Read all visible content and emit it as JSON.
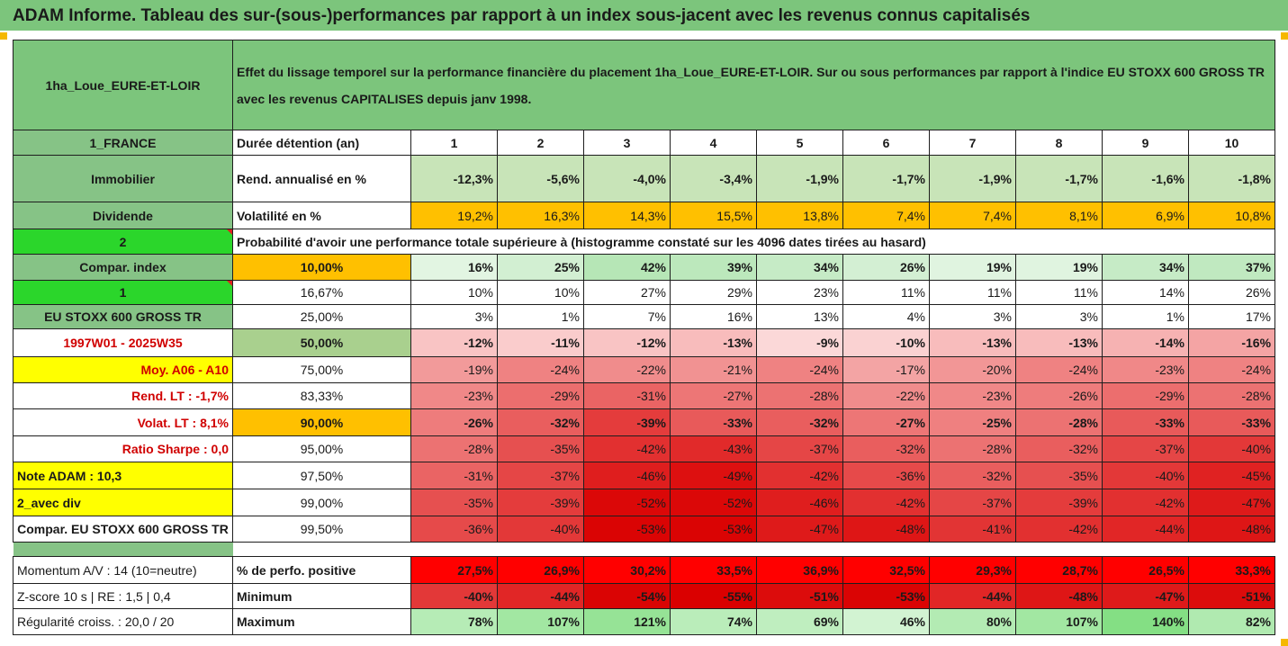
{
  "banner": "ADAM Informe. Tableau des sur-(sous-)performances par rapport à un index sous-jacent avec les revenus connus capitalisés",
  "header": {
    "asset_name": "1ha_Loue_EURE-ET-LOIR",
    "title": "Effet du lissage temporel sur la performance financière du placement 1ha_Loue_EURE-ET-LOIR. Sur ou sous performances par rapport à l'indice EU STOXX 600 GROSS TR avec les revenus CAPITALISES depuis janv 1998."
  },
  "left_labels": {
    "country": "1_FRANCE",
    "category": "Immobilier",
    "income": "Dividende",
    "two": "2",
    "compar_index": "Compar. index",
    "one": "1",
    "index_name": "EU STOXX 600 GROSS TR",
    "period": "1997W01 - 2025W35",
    "moy": "Moy. A06 - A10",
    "rend_lt": "Rend. LT :   -1,7%",
    "volat_lt": "Volat. LT :   8,1%",
    "sharpe": "Ratio Sharpe :   0,0",
    "note": "Note ADAM : 10,3",
    "div": "2_avec div",
    "compar_full": "Compar. EU STOXX 600 GROSS TR",
    "momentum": "Momentum A/V : 14 (10=neutre)",
    "zscore": "Z-score 10 s  |  RE : 1,5  |  0,4",
    "regularite": "Régularité croiss. : 20,0 / 20"
  },
  "headings": {
    "duree": "Durée détention (an)",
    "rend": "Rend. annualisé en %",
    "vol": "Volatilité en %",
    "proba": "Probabilité d'avoir une performance totale supérieure à (histogramme constaté sur les 4096 dates tirées au hasard)",
    "pos": "% de perfo. positive",
    "min": "Minimum",
    "max": "Maximum"
  },
  "years": [
    "1",
    "2",
    "3",
    "4",
    "5",
    "6",
    "7",
    "8",
    "9",
    "10"
  ],
  "rend": [
    "-12,3%",
    "-5,6%",
    "-4,0%",
    "-3,4%",
    "-1,9%",
    "-1,7%",
    "-1,9%",
    "-1,7%",
    "-1,6%",
    "-1,8%"
  ],
  "vol": [
    "19,2%",
    "16,3%",
    "14,3%",
    "15,5%",
    "13,8%",
    "7,4%",
    "7,4%",
    "8,1%",
    "6,9%",
    "10,8%"
  ],
  "vol_colors": [
    "#ffc000",
    "#ffc000",
    "#ffc000",
    "#ffc000",
    "#ffc000",
    "#ffc000",
    "#ffc000",
    "#ffc000",
    "#ffc000",
    "#ffc000"
  ],
  "quantile_rows": [
    {
      "p": "10,00%",
      "bold": true,
      "pcolor": "#ffc000",
      "vals": [
        "16%",
        "25%",
        "42%",
        "39%",
        "34%",
        "26%",
        "19%",
        "19%",
        "34%",
        "37%"
      ],
      "colors": [
        "#e2f5e2",
        "#d2efd2",
        "#b6e6b6",
        "#bce8bc",
        "#c6ebc6",
        "#d3efd3",
        "#e0f4e0",
        "#e0f4e0",
        "#c6ebc6",
        "#c0e9c0"
      ]
    },
    {
      "p": "16,67%",
      "bold": false,
      "pcolor": "#ffffff",
      "vals": [
        "10%",
        "10%",
        "27%",
        "29%",
        "23%",
        "11%",
        "11%",
        "11%",
        "14%",
        "26%"
      ],
      "colors": [
        "#ffffff",
        "#ffffff",
        "#ffffff",
        "#ffffff",
        "#ffffff",
        "#ffffff",
        "#ffffff",
        "#ffffff",
        "#ffffff",
        "#ffffff"
      ]
    },
    {
      "p": "25,00%",
      "bold": false,
      "pcolor": "#ffffff",
      "vals": [
        "3%",
        "1%",
        "7%",
        "16%",
        "13%",
        "4%",
        "3%",
        "3%",
        "1%",
        "17%"
      ],
      "colors": [
        "#ffffff",
        "#ffffff",
        "#ffffff",
        "#ffffff",
        "#ffffff",
        "#ffffff",
        "#ffffff",
        "#ffffff",
        "#ffffff",
        "#ffffff"
      ]
    },
    {
      "p": "50,00%",
      "bold": true,
      "big": true,
      "pcolor": "#a9d08e",
      "vals": [
        "-12%",
        "-11%",
        "-12%",
        "-13%",
        "-9%",
        "-10%",
        "-13%",
        "-13%",
        "-14%",
        "-16%"
      ],
      "colors": [
        "#f9c4c4",
        "#facccc",
        "#f9c4c4",
        "#f8bcbc",
        "#fbd8d8",
        "#fad2d2",
        "#f8bcbc",
        "#f8bcbc",
        "#f6b2b2",
        "#f4a4a4"
      ]
    },
    {
      "p": "75,00%",
      "bold": false,
      "pcolor": "#ffffff",
      "vals": [
        "-19%",
        "-24%",
        "-22%",
        "-21%",
        "-24%",
        "-17%",
        "-20%",
        "-24%",
        "-23%",
        "-24%"
      ],
      "colors": [
        "#f29a9a",
        "#ef8282",
        "#f08c8c",
        "#f19292",
        "#ef8282",
        "#f3a4a4",
        "#f29696",
        "#ef8282",
        "#f08888",
        "#ef8282"
      ]
    },
    {
      "p": "83,33%",
      "bold": false,
      "pcolor": "#ffffff",
      "vals": [
        "-23%",
        "-29%",
        "-31%",
        "-27%",
        "-28%",
        "-22%",
        "-23%",
        "-26%",
        "-29%",
        "-28%"
      ],
      "colors": [
        "#f08888",
        "#ec6e6e",
        "#ea6464",
        "#ed7676",
        "#ec7272",
        "#f08c8c",
        "#f08888",
        "#ee7c7c",
        "#ec6e6e",
        "#ec7272"
      ]
    },
    {
      "p": "90,00%",
      "bold": true,
      "pcolor": "#ffc000",
      "vals": [
        "-26%",
        "-32%",
        "-39%",
        "-33%",
        "-32%",
        "-27%",
        "-25%",
        "-28%",
        "-33%",
        "-33%"
      ],
      "colors": [
        "#ee7c7c",
        "#e95e5e",
        "#e43c3c",
        "#e85a5a",
        "#e95e5e",
        "#ed7676",
        "#ef8080",
        "#ec7272",
        "#e85a5a",
        "#e85a5a"
      ]
    },
    {
      "p": "95,00%",
      "bold": false,
      "pcolor": "#ffffff",
      "vals": [
        "-28%",
        "-35%",
        "-42%",
        "-43%",
        "-37%",
        "-32%",
        "-28%",
        "-32%",
        "-37%",
        "-40%"
      ],
      "colors": [
        "#ec7272",
        "#e65050",
        "#e23030",
        "#e12a2a",
        "#e54646",
        "#e95e5e",
        "#ec7272",
        "#e95e5e",
        "#e54646",
        "#e33838"
      ]
    },
    {
      "p": "97,50%",
      "bold": false,
      "pcolor": "#ffffff",
      "vals": [
        "-31%",
        "-37%",
        "-46%",
        "-49%",
        "-42%",
        "-36%",
        "-32%",
        "-35%",
        "-40%",
        "-45%"
      ],
      "colors": [
        "#ea6464",
        "#e54646",
        "#df1e1e",
        "#dd1010",
        "#e23030",
        "#e64a4a",
        "#e95e5e",
        "#e65050",
        "#e33838",
        "#e02222"
      ]
    },
    {
      "p": "99,00%",
      "bold": false,
      "pcolor": "#ffffff",
      "vals": [
        "-35%",
        "-39%",
        "-52%",
        "-52%",
        "-46%",
        "-42%",
        "-37%",
        "-39%",
        "-42%",
        "-47%"
      ],
      "colors": [
        "#e65050",
        "#e43c3c",
        "#db0808",
        "#db0808",
        "#df1e1e",
        "#e23030",
        "#e54646",
        "#e43c3c",
        "#e23030",
        "#de1a1a"
      ]
    },
    {
      "p": "99,50%",
      "bold": false,
      "pcolor": "#ffffff",
      "vals": [
        "-36%",
        "-40%",
        "-53%",
        "-53%",
        "-47%",
        "-48%",
        "-41%",
        "-42%",
        "-44%",
        "-48%"
      ],
      "colors": [
        "#e64a4a",
        "#e33838",
        "#da0404",
        "#da0404",
        "#de1a1a",
        "#de1616",
        "#e23434",
        "#e23030",
        "#e12626",
        "#de1616"
      ]
    }
  ],
  "pos": [
    "27,5%",
    "26,9%",
    "30,2%",
    "33,5%",
    "36,9%",
    "32,5%",
    "29,3%",
    "28,7%",
    "26,5%",
    "33,3%"
  ],
  "pos_colors": [
    "#ff0000",
    "#ff0000",
    "#ff0000",
    "#ff0000",
    "#ff0000",
    "#ff0000",
    "#ff0000",
    "#ff0000",
    "#ff0000",
    "#ff0000"
  ],
  "min": [
    "-40%",
    "-44%",
    "-54%",
    "-55%",
    "-51%",
    "-53%",
    "-44%",
    "-48%",
    "-47%",
    "-51%"
  ],
  "min_colors": [
    "#e33838",
    "#e12626",
    "#da0404",
    "#da0000",
    "#dc0c0c",
    "#da0404",
    "#e12626",
    "#de1616",
    "#de1a1a",
    "#dc0c0c"
  ],
  "max": [
    "78%",
    "107%",
    "121%",
    "74%",
    "69%",
    "46%",
    "80%",
    "107%",
    "140%",
    "82%"
  ],
  "max_colors": [
    "#b6ecb6",
    "#a2e7a2",
    "#96e396",
    "#baedba",
    "#bfeebf",
    "#d2f3d2",
    "#b3ebb3",
    "#a2e7a2",
    "#84df84",
    "#b0eab0"
  ]
}
